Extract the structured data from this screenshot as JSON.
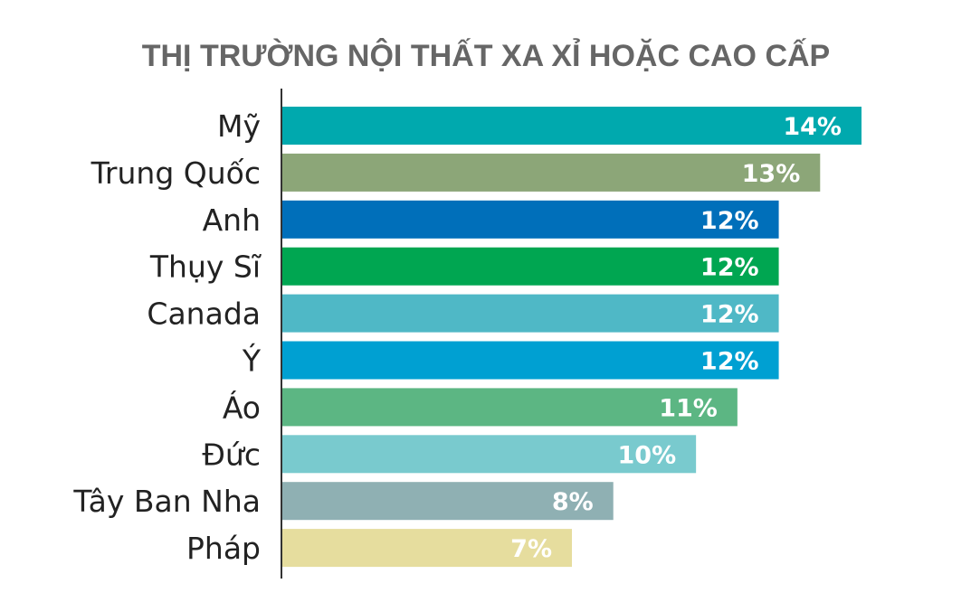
{
  "chart_data": {
    "type": "bar",
    "orientation": "horizontal",
    "title": "THỊ TRƯỜNG NỘI THẤT XA XỈ HOẶC CAO CẤP",
    "categories": [
      "Mỹ",
      "Trung Quốc",
      "Anh",
      "Thụy Sĩ",
      "Canada",
      "Ý",
      "Áo",
      "Đức",
      "Tây Ban Nha",
      "Pháp"
    ],
    "values": [
      14,
      13,
      12,
      12,
      12,
      12,
      11,
      10,
      8,
      7
    ],
    "value_labels": [
      "14%",
      "13%",
      "12%",
      "12%",
      "12%",
      "12%",
      "11%",
      "10%",
      "8%",
      "7%"
    ],
    "unit": "%",
    "xlim": [
      0,
      14
    ],
    "grid": false,
    "colors": [
      "#00A9AE",
      "#8CA678",
      "#006FBA",
      "#00A651",
      "#4FB8C6",
      "#00A0D2",
      "#5CB683",
      "#79CACE",
      "#8FB0B3",
      "#E6DD9E"
    ]
  },
  "colors": {
    "axis": "#333333",
    "title": "#666666",
    "category_text": "#222222",
    "value_text": "#ffffff"
  }
}
